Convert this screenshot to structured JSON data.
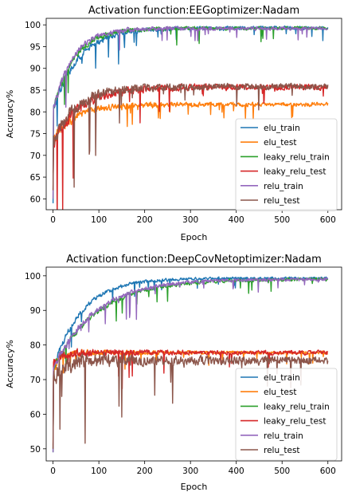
{
  "chart_data": [
    {
      "type": "line",
      "title": "Activation function:EEGoptimizer:Nadam",
      "xlabel": "Epoch",
      "ylabel": "Accuracy%",
      "xlim": [
        -15,
        630
      ],
      "ylim": [
        57.5,
        101.5
      ],
      "xticks": [
        0,
        100,
        200,
        300,
        400,
        500,
        600
      ],
      "yticks": [
        60,
        65,
        70,
        75,
        80,
        85,
        90,
        95,
        100
      ],
      "legend": "lower-right",
      "grid": false,
      "series": [
        {
          "name": "elu_train",
          "color": "#1f77b4",
          "start": 59,
          "early": 80,
          "end": 99.3,
          "tau": 55,
          "noise": 0.5,
          "sl": 0.18
        },
        {
          "name": "elu_test",
          "color": "#ff7f0e",
          "start": 66,
          "early": 73.5,
          "end": 81.7,
          "tau": 48,
          "noise": 0.6,
          "sl": 0.2
        },
        {
          "name": "leaky_relu_train",
          "color": "#2ca02c",
          "start": 60,
          "early": 80,
          "end": 99.2,
          "tau": 45,
          "noise": 0.5,
          "sl": 0.18
        },
        {
          "name": "leaky_relu_test",
          "color": "#d62728",
          "start": 62,
          "early": 73,
          "end": 85.7,
          "tau": 58,
          "noise": 0.9,
          "sl": 0.25
        },
        {
          "name": "relu_train",
          "color": "#9467bd",
          "start": 60,
          "early": 80,
          "end": 99.2,
          "tau": 42,
          "noise": 0.5,
          "sl": 0.18
        },
        {
          "name": "relu_test",
          "color": "#8c564b",
          "start": 62,
          "early": 73,
          "end": 85.8,
          "tau": 52,
          "noise": 0.9,
          "sl": 0.25
        }
      ]
    },
    {
      "type": "line",
      "title": "Activation function:DeepCovNetoptimizer:Nadam",
      "xlabel": "Epoch",
      "ylabel": "Accuracy%",
      "xlim": [
        -15,
        630
      ],
      "ylim": [
        46.5,
        102.5
      ],
      "xticks": [
        0,
        100,
        200,
        300,
        400,
        500,
        600
      ],
      "yticks": [
        50,
        60,
        70,
        80,
        90,
        100
      ],
      "legend": "lower-right",
      "grid": false,
      "series": [
        {
          "name": "elu_train",
          "color": "#1f77b4",
          "start": 49,
          "early": 73,
          "end": 99.3,
          "tau": 62,
          "noise": 0.5,
          "sl": 0.18
        },
        {
          "name": "elu_test",
          "color": "#ff7f0e",
          "start": 50,
          "early": 72,
          "end": 77.8,
          "tau": 14,
          "noise": 0.6,
          "sl": 0.25
        },
        {
          "name": "leaky_relu_train",
          "color": "#2ca02c",
          "start": 49,
          "early": 73,
          "end": 99.0,
          "tau": 95,
          "noise": 0.6,
          "sl": 0.18
        },
        {
          "name": "leaky_relu_test",
          "color": "#d62728",
          "start": 51,
          "early": 74,
          "end": 77.8,
          "tau": 14,
          "noise": 0.8,
          "sl": 0.25
        },
        {
          "name": "relu_train",
          "color": "#9467bd",
          "start": 49,
          "early": 73,
          "end": 99.0,
          "tau": 90,
          "noise": 0.6,
          "sl": 0.18
        },
        {
          "name": "relu_test",
          "color": "#8c564b",
          "start": 50,
          "early": 71,
          "end": 75.5,
          "tau": 25,
          "noise": 1.6,
          "sl": 0.3
        }
      ]
    }
  ]
}
